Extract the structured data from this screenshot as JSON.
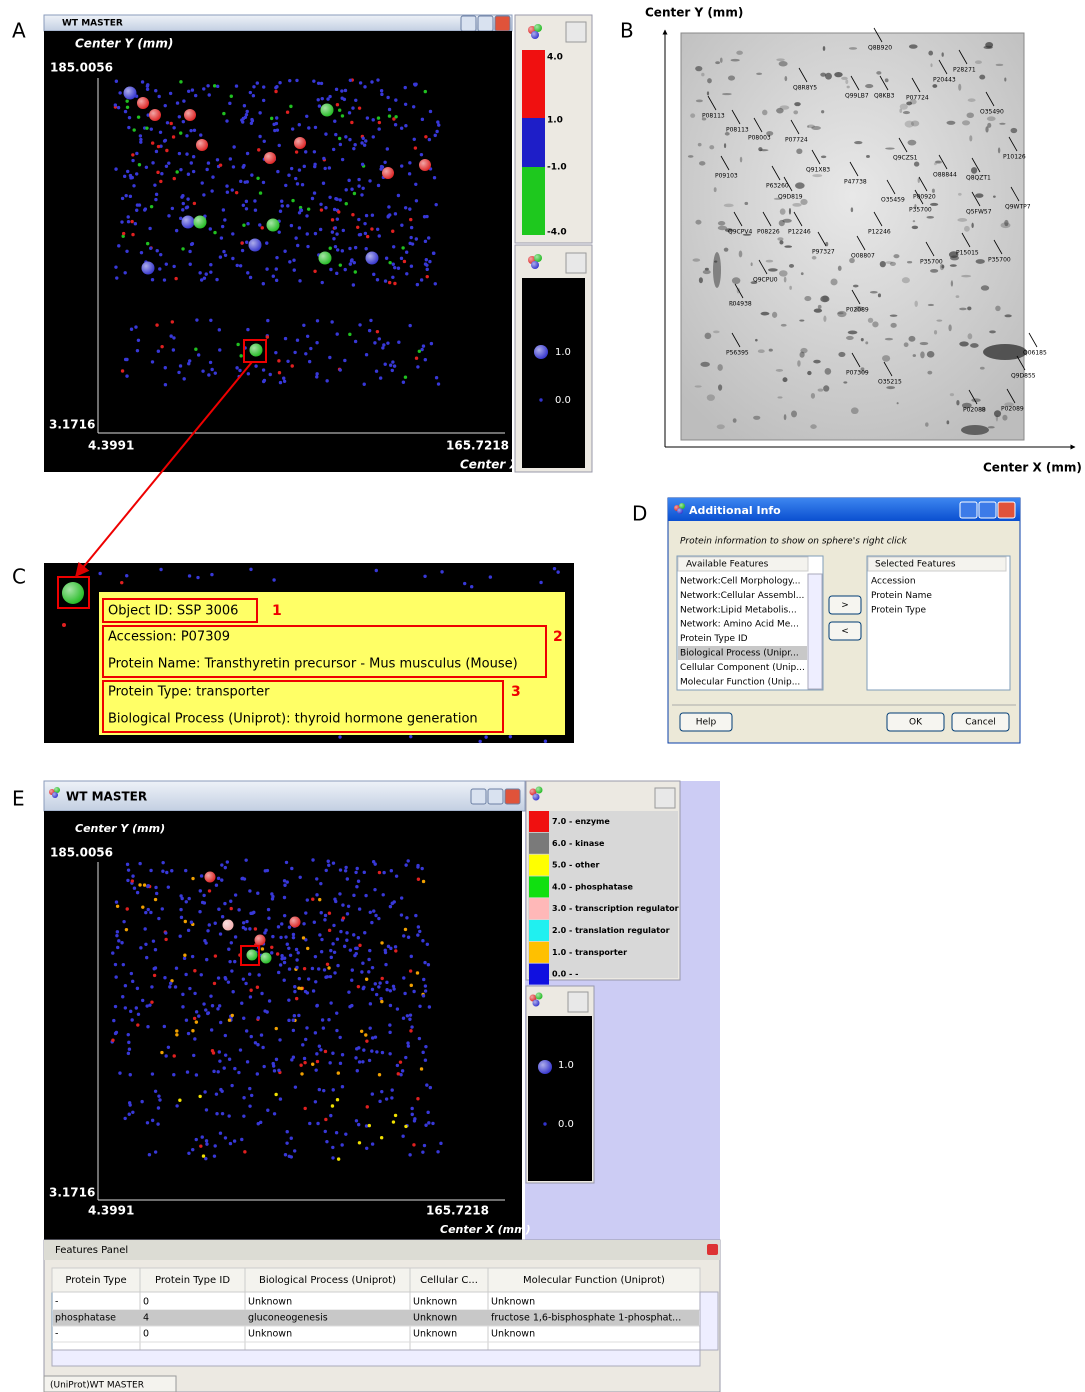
{
  "panels": {
    "a": "A",
    "b": "B",
    "c": "C",
    "d": "D",
    "e": "E"
  },
  "panel_a": {
    "window_title": "WT MASTER",
    "y_axis_label": "Center Y (mm)",
    "y_max": "185.0056",
    "y_min": "3.1716",
    "x_min": "4.3991",
    "x_max": "165.7218",
    "x_axis_label": "Center X",
    "color_legend": [
      "4.0",
      "1.0",
      "-1.0",
      "-4.0"
    ],
    "size_legend": [
      "1.0",
      "0.0"
    ]
  },
  "panel_b": {
    "y_axis_label": "Center Y (mm)",
    "x_axis_label": "Center X (mm)",
    "spot_labels": [
      "Q8B920",
      "P28271",
      "P20443",
      "Q8R8Y5",
      "Q99LB7",
      "Q8KB3",
      "P07724",
      "P08113",
      "P08113",
      "P08003",
      "P07724",
      "O35490",
      "P09103",
      "Q91X83",
      "P47738",
      "Q9CZS1",
      "P10126",
      "P63260",
      "O88844",
      "Q8QZT1",
      "Q9D819",
      "O35459",
      "P00920",
      "P35700",
      "Q5FW57",
      "Q9WTP7",
      "Q9CPV4",
      "P08226",
      "P12246",
      "P12246",
      "P97327",
      "O08807",
      "P35700",
      "P15015",
      "P35700",
      "Q9CPU0",
      "P04938",
      "P02089",
      "P56395",
      "Q06185",
      "P07309",
      "O35215",
      "Q9D855",
      "P02088",
      "P02089"
    ]
  },
  "panel_c": {
    "object_id": "Object ID: SSP 3006",
    "accession": "Accession: P07309",
    "protein_name": "Protein Name: Transthyretin precursor - Mus musculus (Mouse)",
    "protein_type": "Protein Type: transporter",
    "biological_process": "Biological Process (Uniprot): thyroid hormone generation",
    "callouts": [
      "1",
      "2",
      "3"
    ]
  },
  "panel_d": {
    "window_title": "Additional Info",
    "instruction": "Protein information to show on sphere's right click",
    "available_header": "Available Features",
    "selected_header": "Selected Features",
    "available": [
      "Network:Cell Morphology...",
      "Network:Cellular Assembl...",
      "Network:Lipid Metabolis...",
      "Network: Amino Acid Me...",
      "Protein Type ID",
      "Biological Process (Unipr...",
      "Cellular Component (Unip...",
      "Molecular Function (Unip..."
    ],
    "selected": [
      "Accession",
      "Protein Name",
      "Protein Type"
    ],
    "buttons": {
      "add": ">",
      "remove": "<",
      "help": "Help",
      "ok": "OK",
      "cancel": "Cancel"
    }
  },
  "panel_e": {
    "window_title": "WT MASTER",
    "y_axis_label": "Center Y (mm)",
    "y_max": "185.0056",
    "y_min": "3.1716",
    "x_min": "4.3991",
    "x_max": "165.7218",
    "x_axis_label": "Center X (mm)",
    "color_legend": [
      "7.0 - enzyme",
      "6.0 - kinase",
      "5.0 - other",
      "4.0 - phosphatase",
      "3.0 - transcription regulator",
      "2.0 - translation regulator",
      "1.0 - transporter",
      "0.0 - -"
    ],
    "size_legend": [
      "1.0",
      "0.0"
    ],
    "features_panel": {
      "title": "Features Panel",
      "columns": [
        "Protein Type",
        "Protein Type ID",
        "Biological Process (Uniprot)",
        "Cellular C...",
        "Molecular Function (Uniprot)"
      ],
      "rows": [
        [
          "-",
          "0",
          "Unknown",
          "Unknown",
          "Unknown"
        ],
        [
          "phosphatase",
          "4",
          "gluconeogenesis",
          "Unknown",
          "fructose 1,6-bisphosphate 1-phosphat..."
        ],
        [
          "-",
          "0",
          "Unknown",
          "Unknown",
          "Unknown"
        ]
      ],
      "tab": "(UniProt)WT MASTER"
    }
  }
}
